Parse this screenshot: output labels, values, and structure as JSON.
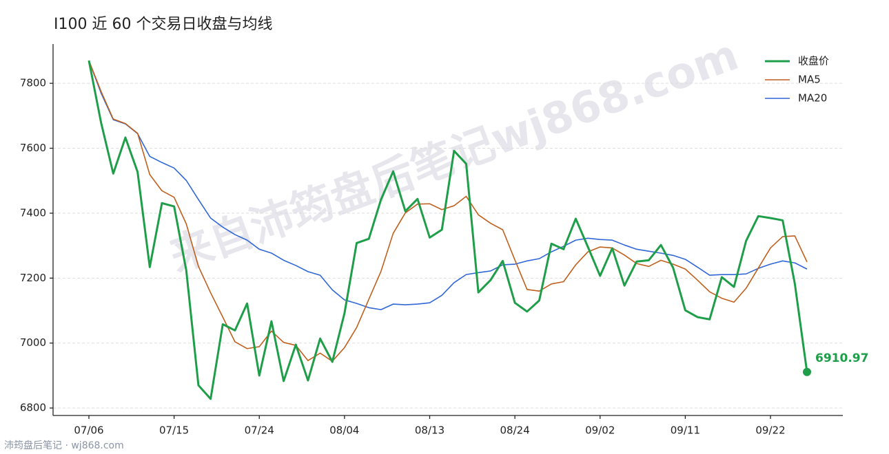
{
  "chart_data": {
    "type": "line",
    "title": "I100 近 60 个交易日收盘与均线",
    "watermark": "来自沛筠盘后笔记wj868.com",
    "footer": "沛筠盘后笔记 · wj868.com",
    "categories": [
      "07/06",
      null,
      null,
      null,
      null,
      null,
      null,
      "07/15",
      null,
      null,
      null,
      null,
      null,
      null,
      "07/24",
      null,
      null,
      null,
      null,
      null,
      null,
      "08/04",
      null,
      null,
      null,
      null,
      null,
      null,
      "08/13",
      null,
      null,
      null,
      null,
      null,
      null,
      "08/24",
      null,
      null,
      null,
      null,
      null,
      null,
      "09/02",
      null,
      null,
      null,
      null,
      null,
      null,
      "09/11",
      null,
      null,
      null,
      null,
      null,
      null,
      "09/22",
      null,
      null,
      null
    ],
    "series": [
      {
        "name": "收盘价",
        "color": "#1e9e48",
        "width": 3,
        "values": [
          7870,
          7679,
          7522,
          7633,
          7527,
          7234,
          7431,
          7421,
          7224,
          6870,
          6828,
          7058,
          7039,
          7122,
          6900,
          7067,
          6883,
          6995,
          6885,
          7014,
          6942,
          7092,
          7308,
          7321,
          7442,
          7529,
          7406,
          7444,
          7325,
          7349,
          7592,
          7552,
          7156,
          7194,
          7253,
          7124,
          7097,
          7131,
          7306,
          7289,
          7383,
          7296,
          7207,
          7292,
          7177,
          7251,
          7255,
          7302,
          7232,
          7101,
          7080,
          7073,
          7203,
          7173,
          7315,
          7391,
          7385,
          7378,
          7183,
          6910.97
        ]
      },
      {
        "name": "MA5",
        "color": "#c05f1c",
        "width": 1.6,
        "values": [
          7870,
          7775,
          7690,
          7676,
          7646,
          7519,
          7469,
          7449,
          7367,
          7236,
          7155,
          7080,
          7004,
          6983,
          6989,
          7037,
          7002,
          6993,
          6946,
          6969,
          6944,
          6986,
          7048,
          7135,
          7221,
          7338,
          7401,
          7428,
          7429,
          7411,
          7423,
          7452,
          7395,
          7369,
          7349,
          7256,
          7165,
          7160,
          7182,
          7189,
          7241,
          7281,
          7296,
          7293,
          7271,
          7245,
          7236,
          7255,
          7243,
          7228,
          7194,
          7158,
          7138,
          7126,
          7169,
          7231,
          7293,
          7328,
          7330,
          7250
        ]
      },
      {
        "name": "MA20",
        "color": "#2f66d8",
        "width": 1.6,
        "values": [
          7870,
          7770,
          7688,
          7675,
          7645,
          7575,
          7556,
          7539,
          7501,
          7442,
          7385,
          7357,
          7334,
          7317,
          7289,
          7277,
          7255,
          7239,
          7220,
          7209,
          7164,
          7133,
          7122,
          7109,
          7103,
          7120,
          7118,
          7120,
          7124,
          7147,
          7186,
          7211,
          7217,
          7222,
          7241,
          7243,
          7253,
          7260,
          7281,
          7298,
          7317,
          7323,
          7319,
          7317,
          7302,
          7289,
          7283,
          7277,
          7270,
          7258,
          7234,
          7209,
          7211,
          7211,
          7213,
          7230,
          7243,
          7253,
          7247,
          7228
        ]
      }
    ],
    "ylim": [
      6777,
      7921
    ],
    "yticks": [
      6800,
      7000,
      7200,
      7400,
      7600,
      7800
    ],
    "grid": true,
    "legend": "upper right"
  }
}
